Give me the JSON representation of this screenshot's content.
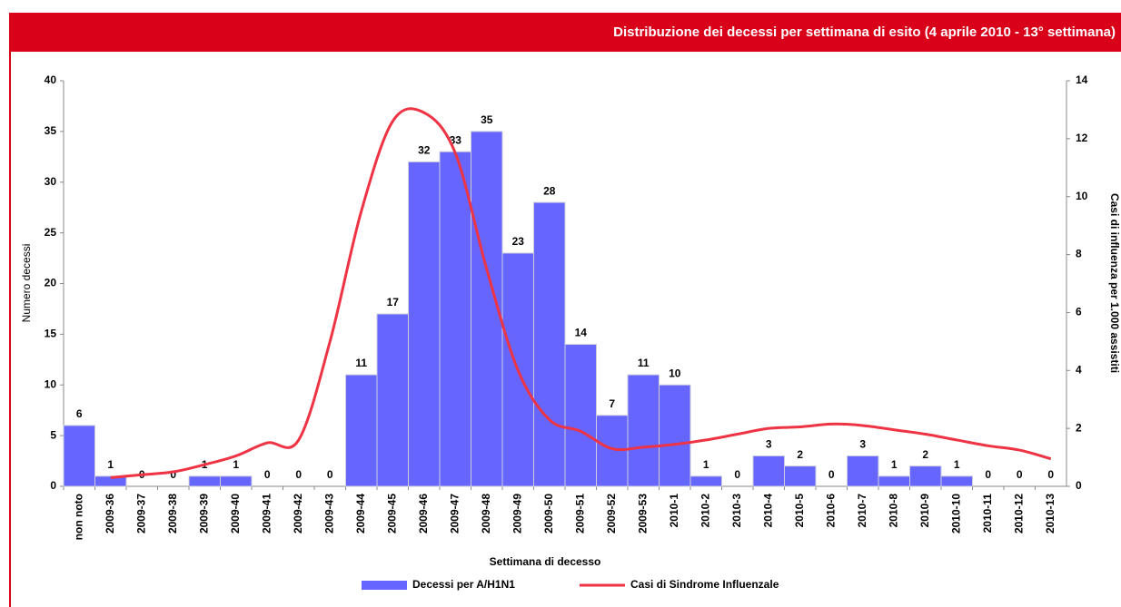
{
  "chart_data": {
    "type": "bar",
    "title": "Distribuzione dei decessi per settimana di esito (4 aprile 2010 - 13° settimana)",
    "x_label": "Settimana di decesso",
    "y_label": "Numero decessi",
    "y2_label": "Casi di influenza per 1.000 assistiti",
    "categories": [
      "non noto",
      "2009-36",
      "2009-37",
      "2009-38",
      "2009-39",
      "2009-40",
      "2009-41",
      "2009-42",
      "2009-43",
      "2009-44",
      "2009-45",
      "2009-46",
      "2009-47",
      "2009-48",
      "2009-49",
      "2009-50",
      "2009-51",
      "2009-52",
      "2009-53",
      "2010-1",
      "2010-2",
      "2010-3",
      "2010-4",
      "2010-5",
      "2010-6",
      "2010-7",
      "2010-8",
      "2010-9",
      "2010-10",
      "2010-11",
      "2010-12",
      "2010-13"
    ],
    "series": [
      {
        "name": "Decessi per A/H1N1",
        "type": "bar",
        "color": "#6666ff",
        "values": [
          6,
          1,
          0,
          0,
          1,
          1,
          0,
          0,
          0,
          11,
          17,
          32,
          33,
          35,
          23,
          28,
          14,
          7,
          11,
          10,
          1,
          0,
          3,
          2,
          0,
          3,
          1,
          2,
          1,
          0,
          0,
          0
        ]
      },
      {
        "name": "Casi di Sindrome Influenzale",
        "type": "line",
        "axis": "y2",
        "color": "#ee3344",
        "values": [
          null,
          0.3,
          0.4,
          0.5,
          0.75,
          1.05,
          1.5,
          1.6,
          5.0,
          9.5,
          12.6,
          12.9,
          11.5,
          7.5,
          4.0,
          2.3,
          1.9,
          1.3,
          1.35,
          1.45,
          1.6,
          1.8,
          2.0,
          2.05,
          2.15,
          2.1,
          1.95,
          1.8,
          1.6,
          1.4,
          1.25,
          0.95
        ]
      }
    ],
    "ylim": [
      0,
      40
    ],
    "yticks": [
      0,
      5,
      10,
      15,
      20,
      25,
      30,
      35,
      40
    ],
    "y2lim": [
      0,
      14
    ],
    "y2ticks": [
      0,
      2,
      4,
      6,
      8,
      10,
      12,
      14
    ],
    "legend": "bottom"
  }
}
